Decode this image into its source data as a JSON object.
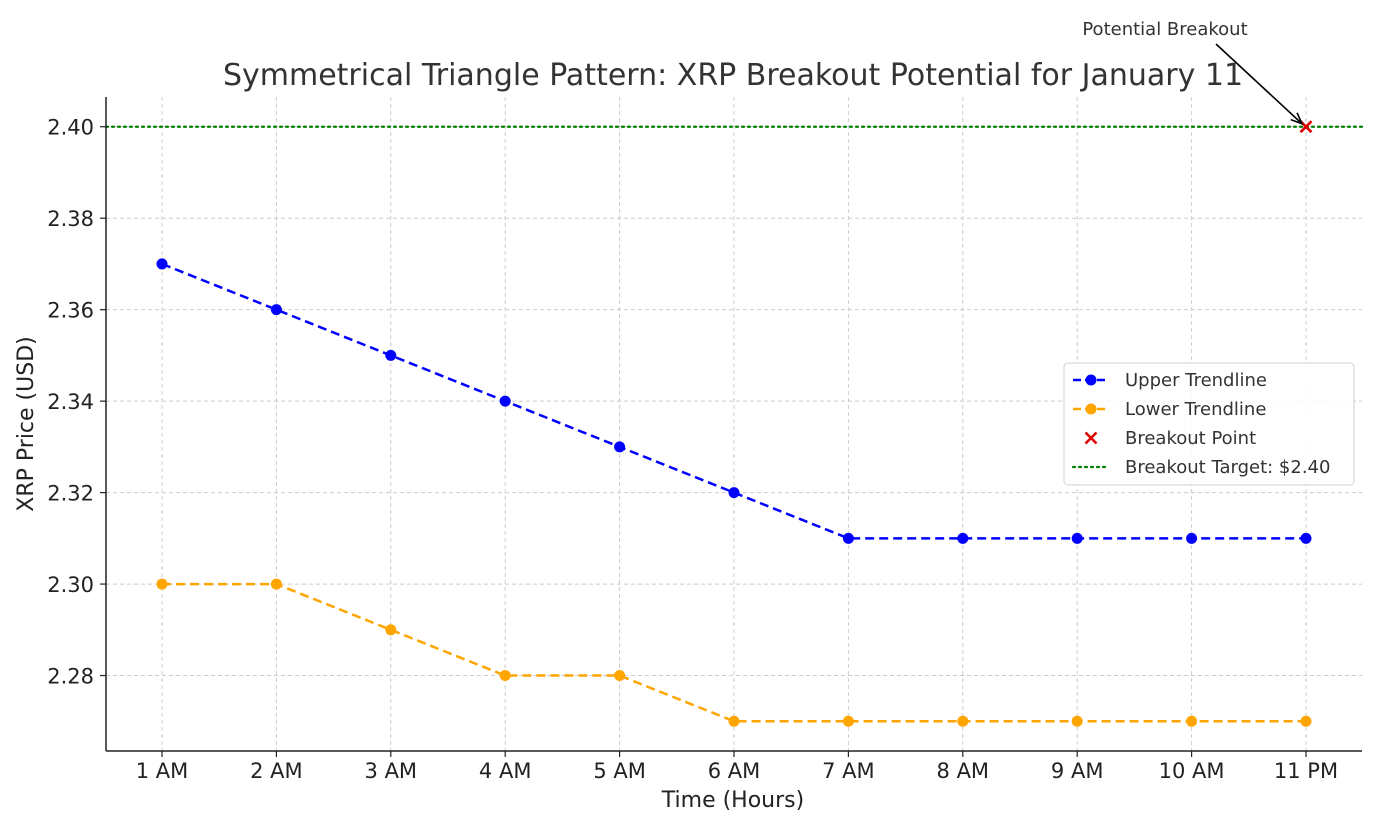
{
  "chart_data": {
    "type": "line",
    "title": "Symmetrical Triangle Pattern: XRP Breakout Potential for January 11",
    "xlabel": "Time (Hours)",
    "ylabel": "XRP Price (USD)",
    "categories": [
      "1 AM",
      "2 AM",
      "3 AM",
      "4 AM",
      "5 AM",
      "6 AM",
      "7 AM",
      "8 AM",
      "9 AM",
      "10 AM",
      "11 PM"
    ],
    "ylim": [
      2.2635,
      2.4065
    ],
    "yticks": [
      2.28,
      2.3,
      2.32,
      2.34,
      2.36,
      2.38,
      2.4
    ],
    "ytick_labels": [
      "2.28",
      "2.30",
      "2.32",
      "2.34",
      "2.36",
      "2.38",
      "2.40"
    ],
    "grid": true,
    "legend_position": "center-right",
    "series": [
      {
        "name": "Upper Trendline",
        "style": "dashed-with-circle-markers",
        "color": "#0000ff",
        "values": [
          2.37,
          2.36,
          2.35,
          2.34,
          2.33,
          2.32,
          2.31,
          2.31,
          2.31,
          2.31,
          2.31
        ]
      },
      {
        "name": "Lower Trendline",
        "style": "dashed-with-circle-markers",
        "color": "#ffa500",
        "values": [
          2.3,
          2.3,
          2.29,
          2.28,
          2.28,
          2.27,
          2.27,
          2.27,
          2.27,
          2.27,
          2.27
        ]
      }
    ],
    "breakout_point": {
      "name": "Breakout Point",
      "color": "#e00000",
      "marker": "x",
      "x": "11 PM",
      "y": 2.4
    },
    "target_line": {
      "name": "Breakout Target: $2.40",
      "color": "#008000",
      "style": "dotted",
      "y": 2.4
    },
    "annotation": {
      "text": "Potential Breakout",
      "points_to_x": "11 PM",
      "points_to_y": 2.4
    }
  }
}
